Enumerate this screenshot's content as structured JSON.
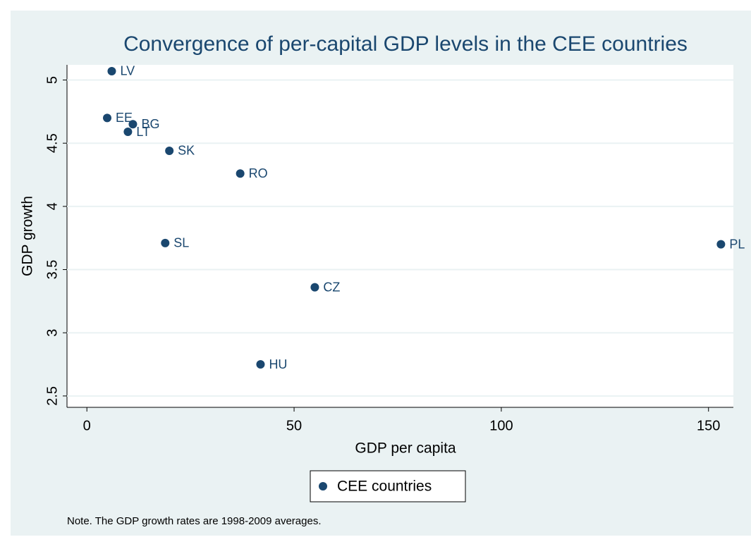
{
  "chart_data": {
    "type": "scatter",
    "title": "Convergence of per-capital GDP levels in the CEE countries",
    "x_label": "GDP per capita",
    "y_label": "GDP growth",
    "note": "Note. The GDP growth rates are 1998-2009 averages.",
    "series": [
      {
        "name": "CEE countries",
        "color": "#1a476f",
        "labels": [
          "LV",
          "EE",
          "BG",
          "LT",
          "SK",
          "RO",
          "SL",
          "PL",
          "CZ",
          "HU"
        ],
        "x": [
          6,
          4.9,
          11.1,
          9.9,
          19.9,
          37,
          18.9,
          153,
          55,
          41.9
        ],
        "values": [
          5.07,
          4.7,
          4.65,
          4.59,
          4.44,
          4.26,
          3.71,
          3.7,
          3.36,
          2.75
        ]
      }
    ],
    "xlim": [
      -4.8,
      156
    ],
    "xticks": [
      0,
      50,
      100,
      150
    ],
    "ylim": [
      2.41,
      5.12
    ],
    "yticks": [
      2.5,
      3,
      3.5,
      4,
      4.5,
      5
    ],
    "grid": true,
    "legend_position": "bottom"
  }
}
